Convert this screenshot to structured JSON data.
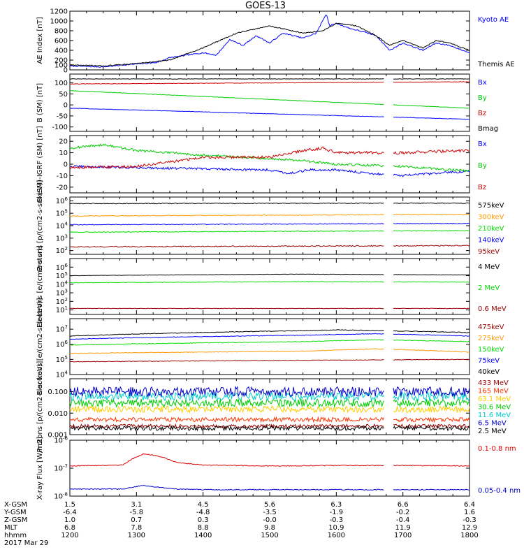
{
  "title": "GOES-13",
  "x_ticks": [
    "1200",
    "1300",
    "1400",
    "1500",
    "1600",
    "1700",
    "1800"
  ],
  "x_range": [
    12.0,
    18.0
  ],
  "footer": {
    "row_labels": [
      "X-GSM",
      "Y-GSM",
      "Z-GSM",
      "MLT",
      "hhmm",
      "2017 Mar 29"
    ],
    "columns": [
      [
        "1.5",
        "-6.4",
        "1.0",
        "6.8",
        "1200"
      ],
      [
        "3.1",
        "-5.8",
        "0.7",
        "7.8",
        "1300"
      ],
      [
        "4.5",
        "-4.8",
        "0.3",
        "8.8",
        "1400"
      ],
      [
        "5.6",
        "-3.5",
        "-0.0",
        "9.8",
        "1500"
      ],
      [
        "6.3",
        "-1.9",
        "-0.3",
        "10.9",
        "1600"
      ],
      [
        "6.6",
        "-0.2",
        "-0.4",
        "11.9",
        "1700"
      ],
      [
        "6.4",
        "1.6",
        "-0.3",
        "12.9",
        "1800"
      ]
    ]
  },
  "chart_data": [
    {
      "type": "line",
      "ylabel": "AE Index [nT]",
      "scale": "linear",
      "ylim": [
        0,
        1200
      ],
      "yticks": [
        "0",
        "100",
        "200",
        "400",
        "600",
        "800",
        "1000",
        "1200"
      ],
      "series": [
        {
          "name": "Kyoto AE",
          "color": "#0000ff",
          "noise": 12,
          "x": [
            12.0,
            12.5,
            12.8,
            13.0,
            13.3,
            13.5,
            14.0,
            14.2,
            14.4,
            14.6,
            14.8,
            15.0,
            15.2,
            15.5,
            15.7,
            15.85,
            15.9,
            16.0,
            16.2,
            16.4,
            16.6,
            16.8,
            17.0,
            17.3,
            17.5,
            17.7,
            18.0
          ],
          "y": [
            80,
            60,
            100,
            120,
            150,
            250,
            350,
            300,
            620,
            500,
            700,
            550,
            750,
            650,
            750,
            1150,
            900,
            950,
            850,
            780,
            700,
            400,
            550,
            400,
            550,
            500,
            350
          ]
        },
        {
          "name": "Themis AE",
          "color": "#000000",
          "noise": 10,
          "x": [
            12.0,
            12.5,
            13.0,
            13.5,
            14.0,
            14.5,
            15.0,
            15.5,
            15.8,
            16.0,
            16.3,
            16.6,
            16.8,
            17.0,
            17.3,
            17.5,
            17.7,
            18.0
          ],
          "y": [
            100,
            80,
            130,
            200,
            450,
            750,
            900,
            750,
            800,
            950,
            900,
            700,
            500,
            600,
            450,
            600,
            550,
            400
          ]
        }
      ]
    },
    {
      "type": "line",
      "ylabel": "B (SM) [nT]",
      "scale": "linear",
      "ylim": [
        -120,
        140
      ],
      "yticks": [
        "-100",
        "-50",
        "0",
        "50",
        "100"
      ],
      "series": [
        {
          "name": "Bx",
          "color": "#0000ff",
          "noise": 1,
          "x": [
            12.0,
            18.0
          ],
          "y": [
            -15,
            -65
          ]
        },
        {
          "name": "By",
          "color": "#00cc00",
          "noise": 1,
          "x": [
            12.0,
            18.0
          ],
          "y": [
            65,
            -15
          ]
        },
        {
          "name": "Bz",
          "color": "#cc0000",
          "noise": 1,
          "x": [
            12.0,
            18.0
          ],
          "y": [
            95,
            105
          ]
        },
        {
          "name": "Bmag",
          "color": "#000000",
          "noise": 1,
          "x": [
            12.0,
            18.0
          ],
          "y": [
            118,
            118
          ]
        }
      ]
    },
    {
      "type": "line",
      "ylabel": "B (SM)-IGRF (SM) [nT]",
      "scale": "linear",
      "ylim": [
        -25,
        25
      ],
      "yticks": [
        "-20",
        "-10",
        "0",
        "10",
        "20"
      ],
      "series": [
        {
          "name": "Bx",
          "color": "#0000ff",
          "noise": 1,
          "x": [
            12.0,
            13.0,
            14.0,
            15.0,
            15.3,
            15.6,
            16.0,
            16.5,
            17.0,
            17.5,
            18.0
          ],
          "y": [
            -2,
            -3,
            -4,
            -5,
            -8,
            -5,
            -5,
            -8,
            -10,
            -8,
            -6
          ]
        },
        {
          "name": "By",
          "color": "#00cc00",
          "noise": 1,
          "x": [
            12.0,
            12.5,
            13.0,
            14.0,
            15.0,
            15.5,
            16.0,
            17.0,
            18.0
          ],
          "y": [
            14,
            17,
            12,
            8,
            5,
            3,
            0,
            -2,
            -6
          ]
        },
        {
          "name": "Bz",
          "color": "#cc0000",
          "noise": 1.2,
          "x": [
            12.0,
            13.0,
            13.5,
            14.0,
            15.0,
            15.5,
            15.8,
            16.0,
            16.5,
            17.0,
            18.0
          ],
          "y": [
            -3,
            -2,
            2,
            6,
            6,
            12,
            14,
            10,
            10,
            10,
            12
          ]
        }
      ]
    },
    {
      "type": "line",
      "ylabel": "Protons [p/(cm2-s-sr-keV)]",
      "scale": "log",
      "ylim": [
        50,
        2000000
      ],
      "yticks": [
        "10^2",
        "10^3",
        "10^4",
        "10^5",
        "10^6"
      ],
      "series": [
        {
          "name": "575keV",
          "color": "#000000",
          "noise": 0.03,
          "x": [
            12.0,
            18.0
          ],
          "y": [
            600000,
            650000
          ]
        },
        {
          "name": "300keV",
          "color": "#ff9900",
          "noise": 0.03,
          "x": [
            12.0,
            18.0
          ],
          "y": [
            60000,
            80000
          ]
        },
        {
          "name": "210keV",
          "color": "#00dd00",
          "noise": 0.03,
          "x": [
            12.0,
            18.0
          ],
          "y": [
            3000,
            4000
          ]
        },
        {
          "name": "140keV",
          "color": "#0000ff",
          "noise": 0.03,
          "x": [
            12.0,
            18.0
          ],
          "y": [
            12000,
            15000
          ]
        },
        {
          "name": "95keV",
          "color": "#990000",
          "noise": 0.04,
          "x": [
            12.0,
            18.0
          ],
          "y": [
            200,
            250
          ]
        }
      ]
    },
    {
      "type": "line",
      "ylabel": "Electrons [e/(cm2-s-sr)]",
      "scale": "log",
      "ylim": [
        3,
        10000000
      ],
      "yticks": [
        "10^1",
        "10^2",
        "10^3",
        "10^4",
        "10^5",
        "10^6"
      ],
      "series": [
        {
          "name": "4 MeV",
          "color": "#000000",
          "noise": 0.02,
          "x": [
            12.0,
            15.5,
            18.0
          ],
          "y": [
            100000,
            150000,
            120000
          ]
        },
        {
          "name": "2 MeV",
          "color": "#00dd00",
          "noise": 0.03,
          "x": [
            12.0,
            15.5,
            18.0
          ],
          "y": [
            15000,
            20000,
            18000
          ]
        },
        {
          "name": "0.6 MeV",
          "color": "#990000",
          "noise": 0.03,
          "x": [
            12.0,
            18.0
          ],
          "y": [
            15,
            15
          ]
        }
      ]
    },
    {
      "type": "line",
      "ylabel": "Electrons [e/(cm2-s-sr-keV)]",
      "scale": "log",
      "ylim": [
        10000,
        50000000
      ],
      "yticks": [
        "10^4",
        "10^5",
        "10^6",
        "10^7"
      ],
      "series": [
        {
          "name": "475keV",
          "color": "#990000",
          "noise": 0.02,
          "x": [
            12.0,
            16.0,
            18.0
          ],
          "y": [
            70000,
            90000,
            100000
          ]
        },
        {
          "name": "275keV",
          "color": "#ff9900",
          "noise": 0.02,
          "x": [
            12.0,
            15.5,
            16.6,
            18.0
          ],
          "y": [
            250000,
            350000,
            500000,
            300000
          ]
        },
        {
          "name": "150keV",
          "color": "#00dd00",
          "noise": 0.02,
          "x": [
            12.0,
            15.5,
            16.6,
            18.0
          ],
          "y": [
            900000,
            1500000,
            2000000,
            1500000
          ]
        },
        {
          "name": "75keV",
          "color": "#0000ff",
          "noise": 0.02,
          "x": [
            12.0,
            15.5,
            16.6,
            18.0
          ],
          "y": [
            2200000,
            4000000,
            5000000,
            3500000
          ]
        },
        {
          "name": "40keV",
          "color": "#000000",
          "noise": 0.02,
          "x": [
            12.0,
            15.5,
            16.0,
            18.0
          ],
          "y": [
            3500000,
            8000000,
            9000000,
            6000000
          ]
        }
      ]
    },
    {
      "type": "line",
      "ylabel": "Protons [p/(cm2-s-sr-keV)]",
      "scale": "log",
      "ylim": [
        0.001,
        0.4
      ],
      "yticks": [
        "0.001",
        "0.010",
        "0.100"
      ],
      "series": [
        {
          "name": "433 MeV",
          "color": "#990000",
          "noise": 0.08,
          "x": [
            12.0,
            18.0
          ],
          "y": [
            0.0025,
            0.0025
          ]
        },
        {
          "name": "165 MeV",
          "color": "#ff3300",
          "noise": 0.1,
          "x": [
            12.0,
            18.0
          ],
          "y": [
            0.005,
            0.005
          ]
        },
        {
          "name": "63.1 MeV",
          "color": "#ffcc00",
          "noise": 0.15,
          "x": [
            12.0,
            18.0
          ],
          "y": [
            0.015,
            0.015
          ]
        },
        {
          "name": "30.6 MeV",
          "color": "#00cc00",
          "noise": 0.18,
          "x": [
            12.0,
            18.0
          ],
          "y": [
            0.03,
            0.03
          ]
        },
        {
          "name": "11.6 MeV",
          "color": "#00cccc",
          "noise": 0.2,
          "x": [
            12.0,
            18.0
          ],
          "y": [
            0.06,
            0.06
          ]
        },
        {
          "name": "6.5 MeV",
          "color": "#0000cc",
          "noise": 0.22,
          "x": [
            12.0,
            18.0
          ],
          "y": [
            0.1,
            0.1
          ]
        },
        {
          "name": "2.5 MeV",
          "color": "#000000",
          "noise": 0.1,
          "x": [
            12.0,
            18.0
          ],
          "y": [
            0.002,
            0.002
          ]
        }
      ]
    },
    {
      "type": "line",
      "ylabel": "X-ray Flux [W/m2]",
      "scale": "log",
      "ylim": [
        1e-08,
        1e-06
      ],
      "yticks": [
        "10^-8",
        "10^-7",
        "10^-6"
      ],
      "series": [
        {
          "name": "0.1-0.8 nm",
          "color": "#dd0000",
          "noise": 0.015,
          "x": [
            12.0,
            12.8,
            13.0,
            13.1,
            13.3,
            13.6,
            14.0,
            15.0,
            16.0,
            17.0,
            18.0
          ],
          "y": [
            1.2e-07,
            1.3e-07,
            2.5e-07,
            3.2e-07,
            2.8e-07,
            1.6e-07,
            1.3e-07,
            1.2e-07,
            1.25e-07,
            1.25e-07,
            1.2e-07
          ]
        },
        {
          "name": "0.05-0.4 nm",
          "color": "#0000cc",
          "noise": 0.015,
          "x": [
            12.0,
            12.8,
            13.0,
            13.1,
            13.3,
            13.6,
            14.0,
            18.0
          ],
          "y": [
            1.8e-08,
            1.8e-08,
            2.2e-08,
            2.4e-08,
            2.1e-08,
            1.8e-08,
            1.7e-08,
            1.7e-08
          ]
        }
      ]
    }
  ]
}
